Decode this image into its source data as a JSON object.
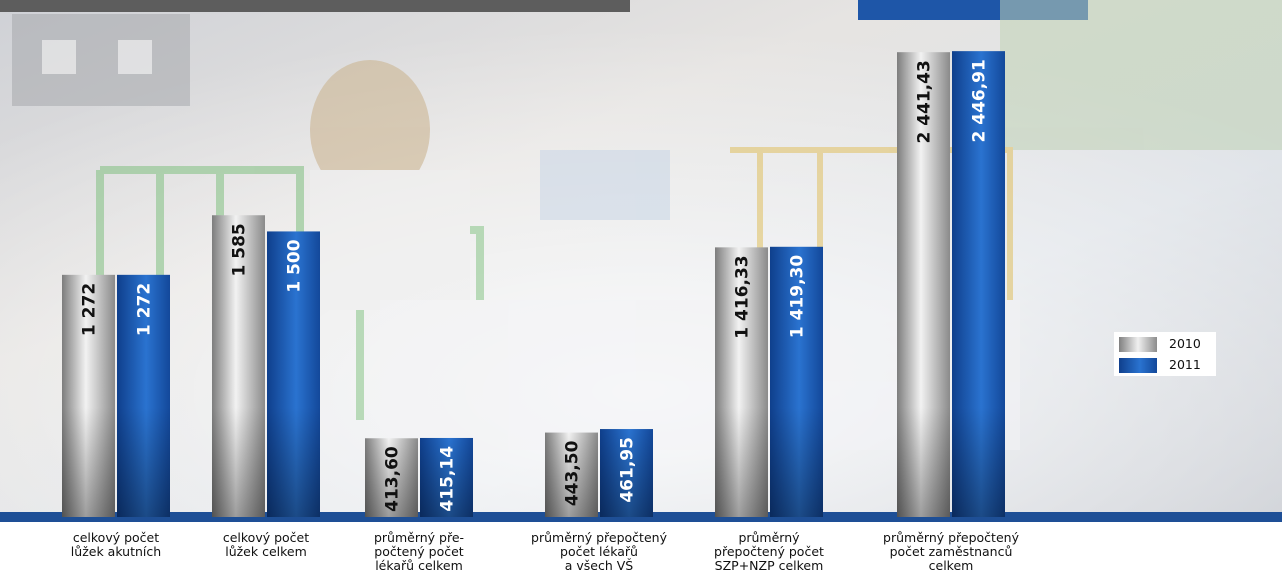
{
  "chart_data": {
    "type": "bar",
    "categories": [
      "celkový počet\nlůžek akutních",
      "celkový počet\nlůžek celkem",
      "průměrný pře-\npočtený počet\nlékařů celkem",
      "průměrný přepočtený\npočet lékařů\na všech VŠ",
      "průměrný\npřepočtený počet\nSZP+NZP celkem",
      "průměrný přepočtený\npočet zaměstnanců\ncelkem"
    ],
    "series": [
      {
        "name": "2010",
        "values": [
          1272,
          1585,
          413.6,
          443.5,
          1416.33,
          2441.43
        ],
        "labels": [
          "1 272",
          "1 585",
          "413,60",
          "443,50",
          "1 416,33",
          "2 441,43"
        ]
      },
      {
        "name": "2011",
        "values": [
          1272,
          1500,
          415.14,
          461.95,
          1419.3,
          2446.91
        ],
        "labels": [
          "1 272",
          "1 500",
          "415,14",
          "461,95",
          "1 419,30",
          "2 446,91"
        ]
      }
    ],
    "ylim": [
      0,
      2600
    ],
    "grid": false,
    "legend": "right",
    "colors": {
      "2010": "#9c9c9c",
      "2011": "#1f5fb8",
      "baseline": "#1e4f96"
    }
  }
}
